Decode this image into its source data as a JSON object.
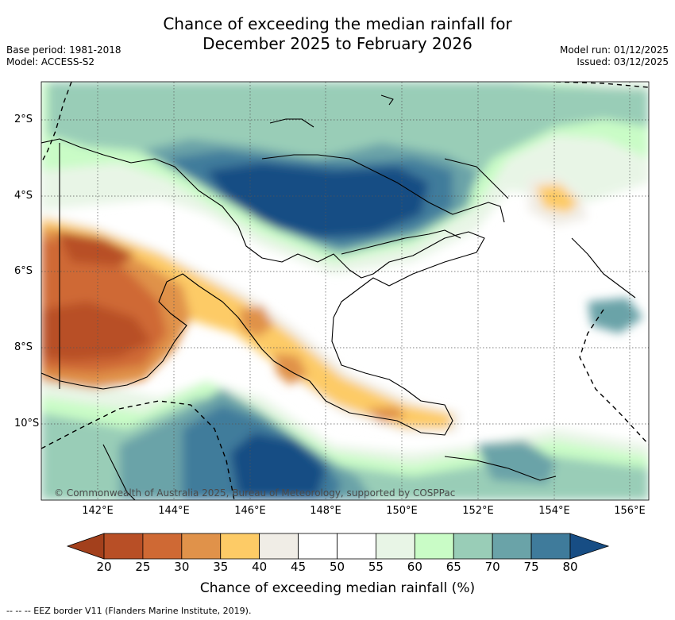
{
  "header": {
    "title_line1": "Chance of exceeding the median rainfall for",
    "title_line2": "December 2025 to February 2026",
    "base_period": "Base period: 1981-2018",
    "model": "Model: ACCESS-S2",
    "model_run": "Model run: 01/12/2025",
    "issued": "Issued: 03/12/2025"
  },
  "map": {
    "lat_labels": [
      "2°S",
      "4°S",
      "6°S",
      "8°S",
      "10°S"
    ],
    "lon_labels": [
      "142°E",
      "144°E",
      "146°E",
      "148°E",
      "150°E",
      "152°E",
      "154°E",
      "156°E"
    ],
    "copyright": "© Commonwealth of Australia 2025, Bureau of Meteorology, supported by COSPPac",
    "regions": {
      "dark_blue_north": "75-80",
      "dark_blue_south": "75-80",
      "orange_west": "20-35",
      "orange_ridge": "30-40",
      "orange_northeast": "35-40"
    }
  },
  "colorbar": {
    "ticks": [
      "20",
      "25",
      "30",
      "35",
      "40",
      "45",
      "50",
      "55",
      "60",
      "65",
      "70",
      "75",
      "80"
    ],
    "colors": [
      "#a3401c",
      "#b84f26",
      "#cf6934",
      "#e0924a",
      "#fdcb66",
      "#f0ede6",
      "#ffffff",
      "#ffffff",
      "#e8f5e6",
      "#c9fcc6",
      "#99cdb7",
      "#6aa3a8",
      "#3f7b9b",
      "#174d84"
    ],
    "label": "Chance of exceeding median rainfall (%)"
  },
  "footer": {
    "eez_legend": "-- -- -- EEZ border V11 (Flanders Marine Institute, 2019)."
  }
}
